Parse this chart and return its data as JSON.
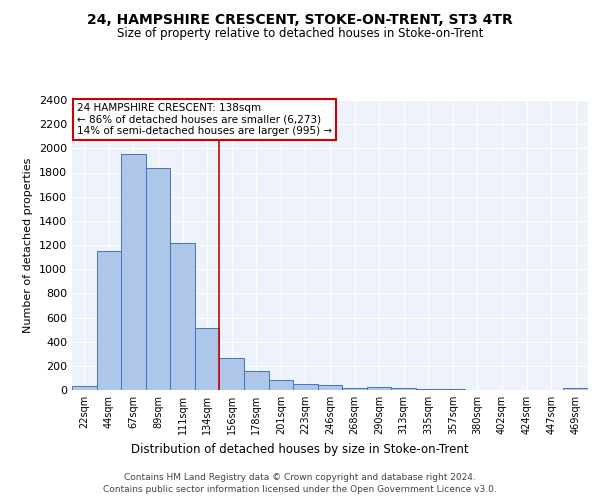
{
  "title1": "24, HAMPSHIRE CRESCENT, STOKE-ON-TRENT, ST3 4TR",
  "title2": "Size of property relative to detached houses in Stoke-on-Trent",
  "xlabel": "Distribution of detached houses by size in Stoke-on-Trent",
  "ylabel": "Number of detached properties",
  "bar_labels": [
    "22sqm",
    "44sqm",
    "67sqm",
    "89sqm",
    "111sqm",
    "134sqm",
    "156sqm",
    "178sqm",
    "201sqm",
    "223sqm",
    "246sqm",
    "268sqm",
    "290sqm",
    "313sqm",
    "335sqm",
    "357sqm",
    "380sqm",
    "402sqm",
    "424sqm",
    "447sqm",
    "469sqm"
  ],
  "bar_values": [
    30,
    1150,
    1955,
    1840,
    1215,
    515,
    265,
    155,
    80,
    50,
    45,
    18,
    22,
    15,
    8,
    5,
    3,
    2,
    2,
    2,
    20
  ],
  "bar_color": "#aec6e8",
  "bar_edge_color": "#4472c4",
  "vline_x": 5.5,
  "annotation_title": "24 HAMPSHIRE CRESCENT: 138sqm",
  "annotation_line1": "← 86% of detached houses are smaller (6,273)",
  "annotation_line2": "14% of semi-detached houses are larger (995) →",
  "ylim": [
    0,
    2400
  ],
  "yticks": [
    0,
    200,
    400,
    600,
    800,
    1000,
    1200,
    1400,
    1600,
    1800,
    2000,
    2200,
    2400
  ],
  "footer1": "Contains HM Land Registry data © Crown copyright and database right 2024.",
  "footer2": "Contains public sector information licensed under the Open Government Licence v3.0.",
  "background_color": "#eef2fa",
  "grid_color": "#ffffff",
  "annotation_box_color": "white",
  "annotation_box_edge_color": "#cc0000",
  "vline_color": "#cc0000"
}
